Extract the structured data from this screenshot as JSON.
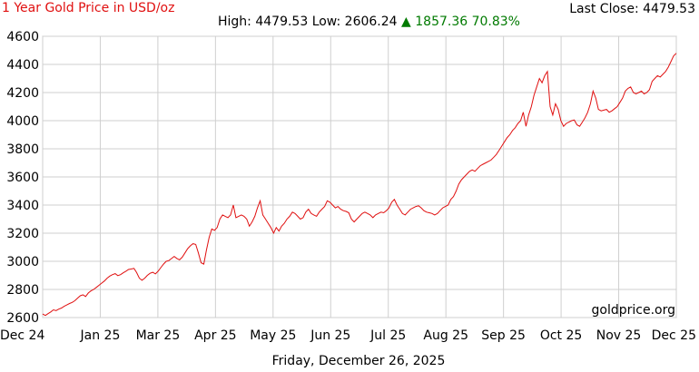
{
  "header": {
    "title": "1 Year Gold Price in USD/oz",
    "last_close": "Last Close: 4479.53",
    "high_low": "High: 4479.53 Low: 2606.24",
    "change_arrow": "▲",
    "change": "1857.36 70.83%"
  },
  "footer": {
    "date": "Friday, December 26, 2025"
  },
  "watermark": "goldprice.org",
  "colors": {
    "line": "#e01010",
    "title": "#e01010",
    "change": "#007a00",
    "grid": "#cfcfcf"
  },
  "chart_data": {
    "type": "line",
    "title": "1 Year Gold Price in USD/oz",
    "xlabel": "",
    "ylabel": "",
    "ylim": [
      2600,
      4600
    ],
    "yticks": [
      "2600",
      "2800",
      "3000",
      "3200",
      "3400",
      "3600",
      "3800",
      "4000",
      "4200",
      "4400",
      "4600"
    ],
    "xticks": [
      "Dec 24",
      "Jan 25",
      "Mar 25",
      "Apr 25",
      "May 25",
      "Jun 25",
      "Jul 25",
      "Aug 25",
      "Sep 25",
      "Oct 25",
      "Nov 25",
      "Dec 25"
    ],
    "grid": true,
    "series": [
      {
        "values": [
          2625,
          2615,
          2628,
          2640,
          2655,
          2650,
          2660,
          2668,
          2680,
          2690,
          2700,
          2708,
          2720,
          2738,
          2755,
          2762,
          2750,
          2775,
          2790,
          2800,
          2815,
          2830,
          2845,
          2860,
          2880,
          2895,
          2905,
          2912,
          2898,
          2905,
          2918,
          2930,
          2942,
          2945,
          2950,
          2920,
          2880,
          2865,
          2880,
          2900,
          2915,
          2922,
          2910,
          2930,
          2955,
          2980,
          3000,
          3005,
          3020,
          3035,
          3020,
          3010,
          3030,
          3060,
          3090,
          3110,
          3125,
          3120,
          3060,
          2990,
          2980,
          3080,
          3170,
          3230,
          3220,
          3240,
          3300,
          3330,
          3320,
          3310,
          3330,
          3400,
          3310,
          3320,
          3330,
          3320,
          3300,
          3250,
          3280,
          3320,
          3380,
          3430,
          3330,
          3300,
          3270,
          3240,
          3200,
          3240,
          3215,
          3250,
          3270,
          3300,
          3320,
          3350,
          3340,
          3320,
          3300,
          3310,
          3350,
          3370,
          3340,
          3330,
          3320,
          3350,
          3370,
          3390,
          3430,
          3420,
          3400,
          3380,
          3390,
          3370,
          3360,
          3355,
          3345,
          3300,
          3280,
          3300,
          3320,
          3340,
          3350,
          3340,
          3330,
          3310,
          3330,
          3340,
          3350,
          3345,
          3360,
          3380,
          3420,
          3440,
          3400,
          3370,
          3340,
          3330,
          3350,
          3370,
          3380,
          3390,
          3395,
          3380,
          3360,
          3350,
          3345,
          3340,
          3330,
          3340,
          3360,
          3380,
          3390,
          3400,
          3440,
          3460,
          3500,
          3550,
          3580,
          3600,
          3620,
          3640,
          3650,
          3640,
          3660,
          3680,
          3690,
          3700,
          3710,
          3720,
          3740,
          3760,
          3790,
          3820,
          3850,
          3880,
          3900,
          3930,
          3950,
          3980,
          4000,
          4060,
          3960,
          4040,
          4100,
          4180,
          4240,
          4300,
          4270,
          4320,
          4350,
          4100,
          4040,
          4120,
          4080,
          4000,
          3960,
          3980,
          3990,
          4000,
          4005,
          3970,
          3960,
          3990,
          4020,
          4060,
          4120,
          4210,
          4160,
          4080,
          4070,
          4075,
          4080,
          4060,
          4070,
          4085,
          4100,
          4130,
          4160,
          4210,
          4230,
          4240,
          4200,
          4190,
          4200,
          4210,
          4190,
          4200,
          4220,
          4280,
          4300,
          4320,
          4310,
          4330,
          4350,
          4380,
          4420,
          4460,
          4479.53
        ]
      }
    ]
  }
}
